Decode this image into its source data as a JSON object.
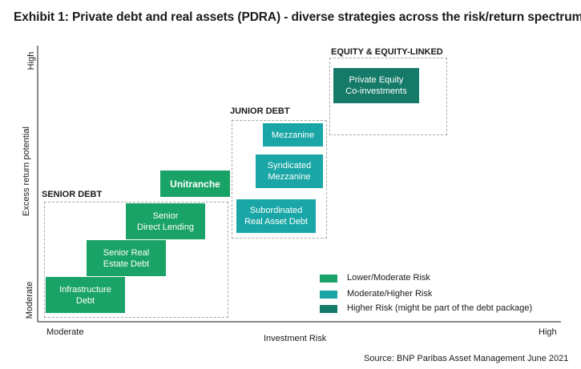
{
  "title": "Exhibit 1: Private debt and real assets (PDRA) - diverse strategies across the risk/return spectrum",
  "colors": {
    "lower_moderate": "#1aa366",
    "moderate_higher": "#1aa6a6",
    "higher": "#157a68"
  },
  "y_axis": {
    "label": "Excess return potential",
    "high": "High",
    "low": "Moderate"
  },
  "x_axis": {
    "label": "Investment Risk",
    "low": "Moderate",
    "high": "High"
  },
  "groups": {
    "senior_debt": "SENIOR DEBT",
    "junior_debt": "JUNIOR DEBT",
    "equity": "EQUITY & EQUITY-LINKED"
  },
  "strategies": {
    "infrastructure_debt": {
      "label": "Infrastructure\nDebt",
      "risk": "Lower/Moderate Risk"
    },
    "senior_real_estate_debt": {
      "label": "Senior Real\nEstate Debt",
      "risk": "Lower/Moderate Risk"
    },
    "senior_direct_lending": {
      "label": "Senior\nDirect Lending",
      "risk": "Lower/Moderate Risk"
    },
    "unitranche": {
      "label": "Unitranche",
      "risk": "Lower/Moderate Risk"
    },
    "subordinated_real_asset_debt": {
      "label": "Subordinated\nReal Asset Debt",
      "risk": "Moderate/Higher Risk"
    },
    "syndicated_mezzanine": {
      "label": "Syndicated\nMezzanine",
      "risk": "Moderate/Higher Risk"
    },
    "mezzanine": {
      "label": "Mezzanine",
      "risk": "Moderate/Higher Risk"
    },
    "private_equity_coinvestments": {
      "label": "Private Equity\nCo-investments",
      "risk": "Higher Risk (might be part of the debt package)"
    }
  },
  "legend": [
    {
      "label": "Lower/Moderate Risk"
    },
    {
      "label": "Moderate/Higher Risk"
    },
    {
      "label": "Higher Risk (might be part of the debt package)"
    }
  ],
  "source": "Source: BNP Paribas Asset Management June 2021"
}
